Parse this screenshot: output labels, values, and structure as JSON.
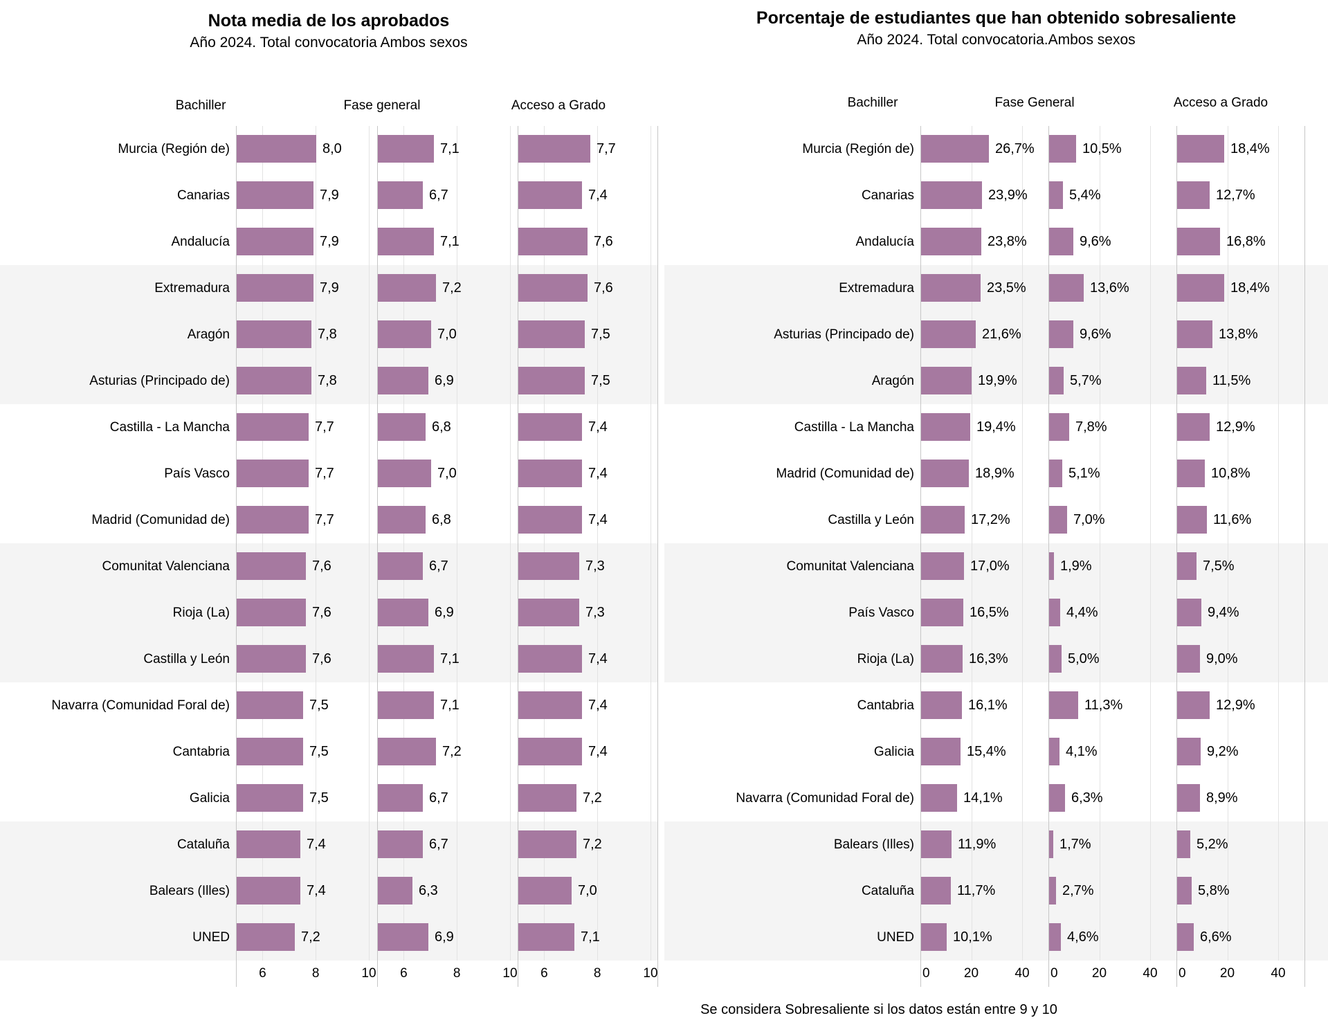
{
  "chart_data": [
    {
      "type": "bar",
      "orientation": "horizontal",
      "title": "Nota media de los aprobados",
      "subtitle": "Año 2024. Total convocatoria Ambos sexos",
      "legend_position": "none",
      "grid": true,
      "xlim": [
        5,
        10
      ],
      "ticks": [
        6,
        8,
        10
      ],
      "categories": [
        "Murcia (Región de)",
        "Canarias",
        "Andalucía",
        "Extremadura",
        "Aragón",
        "Asturias (Principado de)",
        "Castilla - La Mancha",
        "País Vasco",
        "Madrid (Comunidad de)",
        "Comunitat Valenciana",
        "Rioja (La)",
        "Castilla y León",
        "Navarra (Comunidad Foral de)",
        "Cantabria",
        "Galicia",
        "Cataluña",
        "Balears (Illes)",
        "UNED"
      ],
      "series": [
        {
          "name": "Bachiller",
          "values": [
            8.0,
            7.9,
            7.9,
            7.9,
            7.8,
            7.8,
            7.7,
            7.7,
            7.7,
            7.6,
            7.6,
            7.6,
            7.5,
            7.5,
            7.5,
            7.4,
            7.4,
            7.2
          ]
        },
        {
          "name": "Fase general",
          "values": [
            7.1,
            6.7,
            7.1,
            7.2,
            7.0,
            6.9,
            6.8,
            7.0,
            6.8,
            6.7,
            6.9,
            7.1,
            7.1,
            7.2,
            6.7,
            6.7,
            6.3,
            6.9
          ]
        },
        {
          "name": "Acceso a Grado",
          "values": [
            7.7,
            7.4,
            7.6,
            7.6,
            7.5,
            7.5,
            7.4,
            7.4,
            7.4,
            7.3,
            7.3,
            7.4,
            7.4,
            7.4,
            7.2,
            7.2,
            7.0,
            7.1
          ]
        }
      ],
      "value_labels": [
        [
          "8,0",
          "7,1",
          "7,7"
        ],
        [
          "7,9",
          "6,7",
          "7,4"
        ],
        [
          "7,9",
          "7,1",
          "7,6"
        ],
        [
          "7,9",
          "7,2",
          "7,6"
        ],
        [
          "7,8",
          "7,0",
          "7,5"
        ],
        [
          "7,8",
          "6,9",
          "7,5"
        ],
        [
          "7,7",
          "6,8",
          "7,4"
        ],
        [
          "7,7",
          "7,0",
          "7,4"
        ],
        [
          "7,7",
          "6,8",
          "7,4"
        ],
        [
          "7,6",
          "6,7",
          "7,3"
        ],
        [
          "7,6",
          "6,9",
          "7,3"
        ],
        [
          "7,6",
          "7,1",
          "7,4"
        ],
        [
          "7,5",
          "7,1",
          "7,4"
        ],
        [
          "7,5",
          "7,2",
          "7,4"
        ],
        [
          "7,5",
          "6,7",
          "7,2"
        ],
        [
          "7,4",
          "6,7",
          "7,2"
        ],
        [
          "7,4",
          "6,3",
          "7,0"
        ],
        [
          "7,2",
          "6,9",
          "7,1"
        ]
      ]
    },
    {
      "type": "bar",
      "orientation": "horizontal",
      "title": "Porcentaje de estudiantes que han obtenido sobresaliente",
      "subtitle": "Año 2024. Total convocatoria.Ambos sexos",
      "legend_position": "none",
      "grid": true,
      "xlim": [
        0,
        45
      ],
      "ticks": [
        0,
        20,
        40
      ],
      "categories": [
        "Murcia (Región de)",
        "Canarias",
        "Andalucía",
        "Extremadura",
        "Asturias (Principado de)",
        "Aragón",
        "Castilla - La Mancha",
        "Madrid (Comunidad de)",
        "Castilla y León",
        "Comunitat Valenciana",
        "País Vasco",
        "Rioja (La)",
        "Cantabria",
        "Galicia",
        "Navarra (Comunidad Foral de)",
        "Balears (Illes)",
        "Cataluña",
        "UNED"
      ],
      "series": [
        {
          "name": "Bachiller",
          "values": [
            26.7,
            23.9,
            23.8,
            23.5,
            21.6,
            19.9,
            19.4,
            18.9,
            17.2,
            17.0,
            16.5,
            16.3,
            16.1,
            15.4,
            14.1,
            11.9,
            11.7,
            10.1
          ]
        },
        {
          "name": "Fase General",
          "values": [
            10.5,
            5.4,
            9.6,
            13.6,
            9.6,
            5.7,
            7.8,
            5.1,
            7.0,
            1.9,
            4.4,
            5.0,
            11.3,
            4.1,
            6.3,
            1.7,
            2.7,
            4.6
          ]
        },
        {
          "name": "Acceso a Grado",
          "values": [
            18.4,
            12.7,
            16.8,
            18.4,
            13.8,
            11.5,
            12.9,
            10.8,
            11.6,
            7.5,
            9.4,
            9.0,
            12.9,
            9.2,
            8.9,
            5.2,
            5.8,
            6.6
          ]
        }
      ],
      "value_labels": [
        [
          "26,7%",
          "10,5%",
          "18,4%"
        ],
        [
          "23,9%",
          "5,4%",
          "12,7%"
        ],
        [
          "23,8%",
          "9,6%",
          "16,8%"
        ],
        [
          "23,5%",
          "13,6%",
          "18,4%"
        ],
        [
          "21,6%",
          "9,6%",
          "13,8%"
        ],
        [
          "19,9%",
          "5,7%",
          "11,5%"
        ],
        [
          "19,4%",
          "7,8%",
          "12,9%"
        ],
        [
          "18,9%",
          "5,1%",
          "10,8%"
        ],
        [
          "17,2%",
          "7,0%",
          "11,6%"
        ],
        [
          "17,0%",
          "1,9%",
          "7,5%"
        ],
        [
          "16,5%",
          "4,4%",
          "9,4%"
        ],
        [
          "16,3%",
          "5,0%",
          "9,0%"
        ],
        [
          "16,1%",
          "11,3%",
          "12,9%"
        ],
        [
          "15,4%",
          "4,1%",
          "9,2%"
        ],
        [
          "14,1%",
          "6,3%",
          "8,9%"
        ],
        [
          "11,9%",
          "1,7%",
          "5,2%"
        ],
        [
          "11,7%",
          "2,7%",
          "5,8%"
        ],
        [
          "10,1%",
          "4,6%",
          "6,6%"
        ]
      ]
    }
  ],
  "footnote": "Se considera Sobresaliente si los datos están entre 9 y 10",
  "colors": {
    "bar": "#a679a0",
    "band": "#f4f4f4",
    "gridline": "#e3e3e3",
    "axis_line": "#c6c6c6"
  }
}
